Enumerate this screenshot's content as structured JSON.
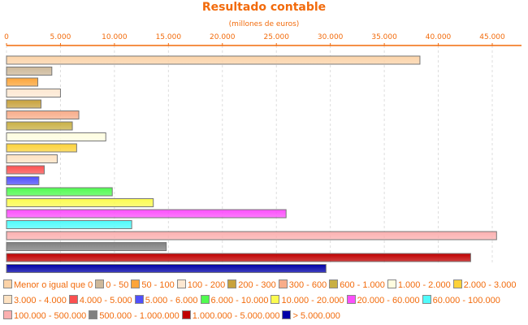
{
  "chart_data": {
    "type": "bar",
    "orientation": "horizontal",
    "title": "Resultado contable",
    "subtitle": "(millones de euros)",
    "xlim": [
      0,
      48000
    ],
    "xticks": [
      0,
      5000,
      10000,
      15000,
      20000,
      25000,
      30000,
      35000,
      40000,
      45000
    ],
    "xtick_labels": [
      "0",
      "5.000",
      "10.000",
      "15.000",
      "20.000",
      "25.000",
      "30.000",
      "35.000",
      "40.000",
      "45.000"
    ],
    "grid": true,
    "legend_position": "bottom",
    "categories": [
      "Menor o igual que 0",
      "0 - 50",
      "50 - 100",
      "100 - 200",
      "200 - 300",
      "300 - 600",
      "600 - 1.000",
      "1.000 - 2.000",
      "2.000 - 3.000",
      "3.000 - 4.000",
      "4.000 - 5.000",
      "5.000 - 6.000",
      "6.000 - 10.000",
      "10.000 - 20.000",
      "20.000 - 60.000",
      "60.000 - 100.000",
      "100.000 - 500.000",
      "500.000 - 1.000.000",
      "1.000.000 - 5.000.000",
      "> 5.000.000"
    ],
    "values": [
      38300,
      4200,
      2900,
      5000,
      3200,
      6700,
      6100,
      9200,
      6500,
      4700,
      3500,
      3000,
      9800,
      13600,
      25900,
      11600,
      45400,
      14800,
      43000,
      29600
    ],
    "colors": [
      "#fcd3a8",
      "#cdb89a",
      "#fca53a",
      "#fde8d2",
      "#c8a23c",
      "#f8ad8a",
      "#c9b044",
      "#fefde0",
      "#fcd23a",
      "#fde2c2",
      "#fb5050",
      "#5050fb",
      "#50fb50",
      "#fbfb50",
      "#fb50fb",
      "#50fbfb",
      "#fbb0b0",
      "#808080",
      "#c00000",
      "#0000a8"
    ]
  }
}
